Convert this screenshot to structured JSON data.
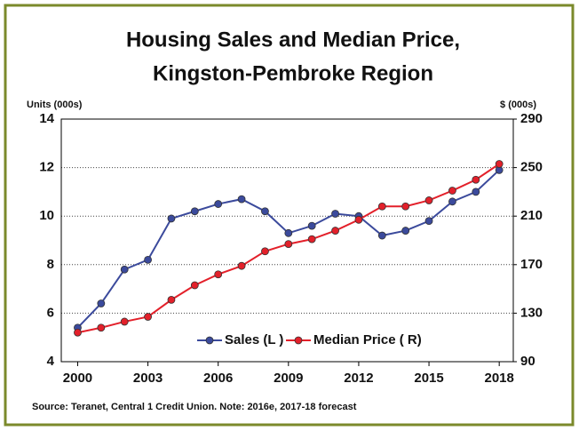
{
  "chart_data": {
    "type": "line",
    "title": [
      "Housing Sales and Median Price,",
      "Kingston-Pembroke Region"
    ],
    "y_label": "Units (000s)",
    "y2_label": "$ (000s)",
    "source": "Source: Teranet, Central 1 Credit Union.  Note: 2016e, 2017-18 forecast",
    "x": [
      2000,
      2001,
      2002,
      2003,
      2004,
      2005,
      2006,
      2007,
      2008,
      2009,
      2010,
      2011,
      2012,
      2013,
      2014,
      2015,
      2016,
      2017,
      2018
    ],
    "xlim": [
      1999.3,
      2018.6
    ],
    "xticks": [
      2000,
      2003,
      2006,
      2009,
      2012,
      2015,
      2018
    ],
    "ylim": [
      4,
      14
    ],
    "yticks": [
      4,
      6,
      8,
      10,
      12,
      14
    ],
    "y2lim": [
      90,
      290
    ],
    "y2ticks": [
      90,
      130,
      170,
      210,
      250,
      290
    ],
    "grid": true,
    "legend": "lower center",
    "series": [
      {
        "name": "Sales (L )",
        "color": "#3b4a9c",
        "axis": "y",
        "values": [
          5.4,
          6.4,
          7.8,
          8.2,
          9.9,
          10.2,
          10.5,
          10.7,
          10.2,
          9.3,
          9.6,
          10.1,
          10.0,
          9.2,
          9.4,
          9.8,
          10.6,
          11.0,
          11.9
        ]
      },
      {
        "name": "Median Price ( R)",
        "color": "#e3202a",
        "axis": "y2",
        "values": [
          114,
          118,
          123,
          127,
          141,
          153,
          162,
          169,
          181,
          187,
          191,
          198,
          207,
          218,
          218,
          223,
          231,
          240,
          253
        ]
      }
    ]
  }
}
